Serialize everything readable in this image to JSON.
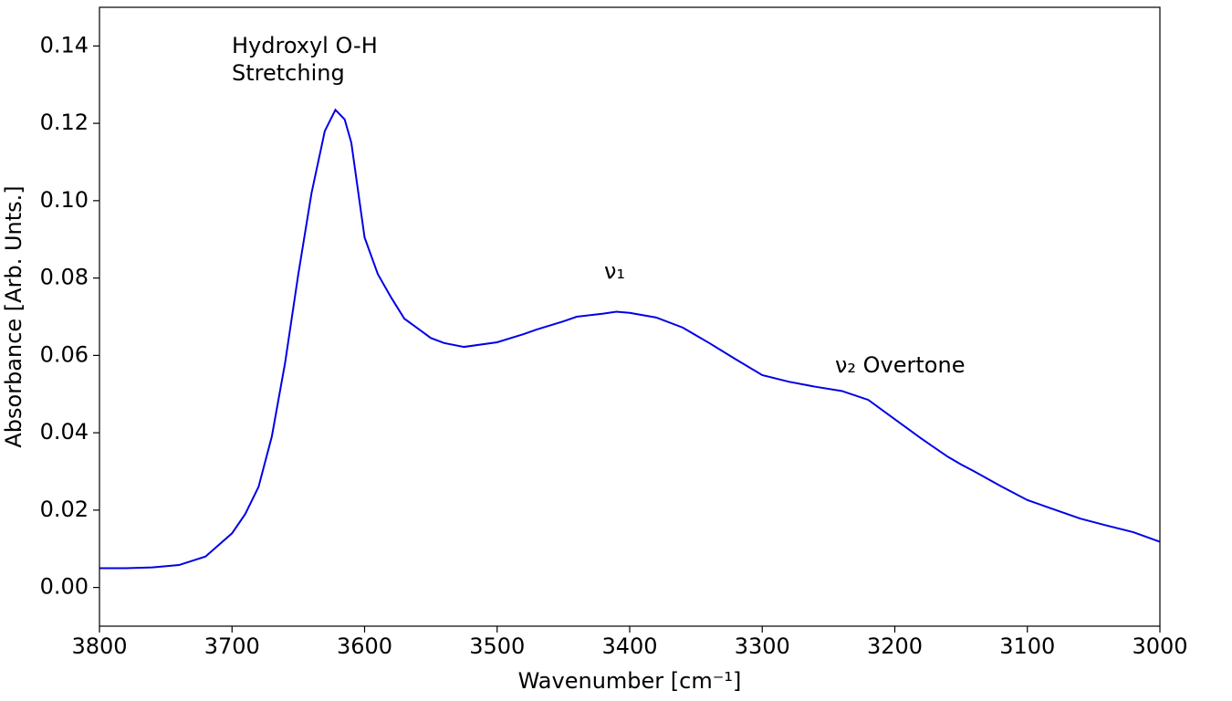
{
  "chart_data": {
    "type": "line",
    "xlabel": "Wavenumber [cm⁻¹]",
    "ylabel": "Absorbance [Arb. Unts.]",
    "annotations": [
      "Hydroxyl O-H\nStretching",
      "ν₁",
      "ν₂ Overtone"
    ],
    "x": [
      3800,
      3780,
      3760,
      3740,
      3720,
      3700,
      3690,
      3680,
      3670,
      3660,
      3650,
      3640,
      3630,
      3622,
      3615,
      3610,
      3600,
      3590,
      3580,
      3570,
      3560,
      3550,
      3540,
      3525,
      3500,
      3480,
      3470,
      3450,
      3440,
      3420,
      3410,
      3400,
      3380,
      3360,
      3350,
      3340,
      3320,
      3300,
      3280,
      3260,
      3240,
      3220,
      3200,
      3180,
      3160,
      3150,
      3140,
      3120,
      3100,
      3080,
      3060,
      3040,
      3020,
      3000
    ],
    "series": [
      {
        "color": "#0000e6",
        "values": [
          0.005,
          0.005,
          0.0052,
          0.0058,
          0.008,
          0.014,
          0.019,
          0.026,
          0.039,
          0.058,
          0.081,
          0.102,
          0.118,
          0.1235,
          0.121,
          0.115,
          0.0905,
          0.081,
          0.075,
          0.0695,
          0.067,
          0.0645,
          0.0632,
          0.0622,
          0.0634,
          0.0655,
          0.0667,
          0.0688,
          0.07,
          0.0708,
          0.0713,
          0.071,
          0.0698,
          0.0672,
          0.0652,
          0.0632,
          0.059,
          0.0549,
          0.0532,
          0.0519,
          0.0508,
          0.0485,
          0.0435,
          0.0385,
          0.0338,
          0.0318,
          0.03,
          0.0262,
          0.0226,
          0.0202,
          0.0178,
          0.016,
          0.0143,
          0.0118
        ]
      }
    ],
    "xlim": [
      3800,
      3000
    ],
    "ylim": [
      -0.01,
      0.15
    ],
    "xticks": [
      3800,
      3700,
      3600,
      3500,
      3400,
      3300,
      3200,
      3100,
      3000
    ],
    "yticks": [
      {
        "value": 0,
        "label": "0.00"
      },
      {
        "value": 0.02,
        "label": "0.02"
      },
      {
        "value": 0.04,
        "label": "0.04"
      },
      {
        "value": 0.06,
        "label": "0.06"
      },
      {
        "value": 0.08,
        "label": "0.08"
      },
      {
        "value": 0.1,
        "label": "0.10"
      },
      {
        "value": 0.12,
        "label": "0.12"
      },
      {
        "value": 0.14,
        "label": "0.14"
      }
    ]
  }
}
